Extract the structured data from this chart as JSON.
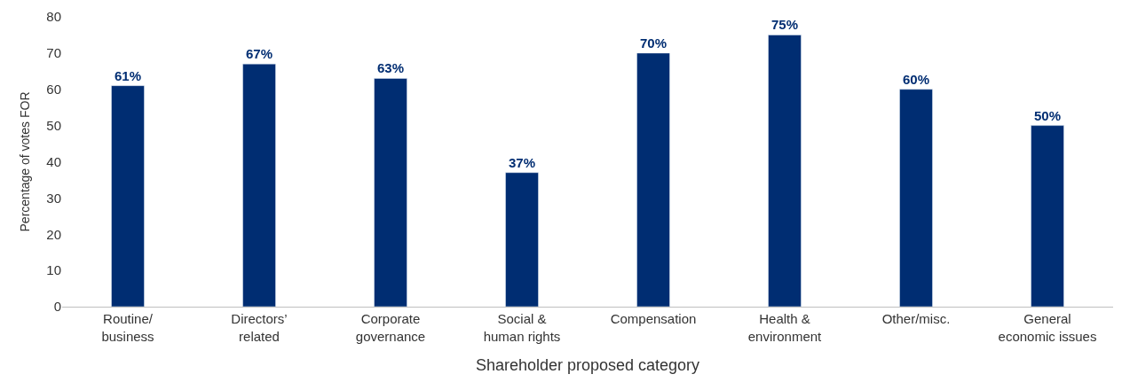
{
  "chart_data": {
    "type": "bar",
    "xlabel": "Shareholder proposed category",
    "ylabel": "Percentage of votes FOR",
    "categories": [
      "Routine/\nbusiness",
      "Directors’\nrelated",
      "Corporate\ngovernance",
      "Social &\nhuman rights",
      "Compensation",
      "Health &\nenvironment",
      "Other/misc.",
      "General\neconomic issues"
    ],
    "values": [
      61,
      67,
      63,
      37,
      70,
      75,
      60,
      50
    ],
    "value_labels": [
      "61%",
      "67%",
      "63%",
      "37%",
      "70%",
      "75%",
      "60%",
      "50%"
    ],
    "color": "#002d72",
    "ylim": [
      0,
      80
    ],
    "yticks": [
      0,
      10,
      20,
      30,
      40,
      50,
      60,
      70,
      80
    ]
  }
}
